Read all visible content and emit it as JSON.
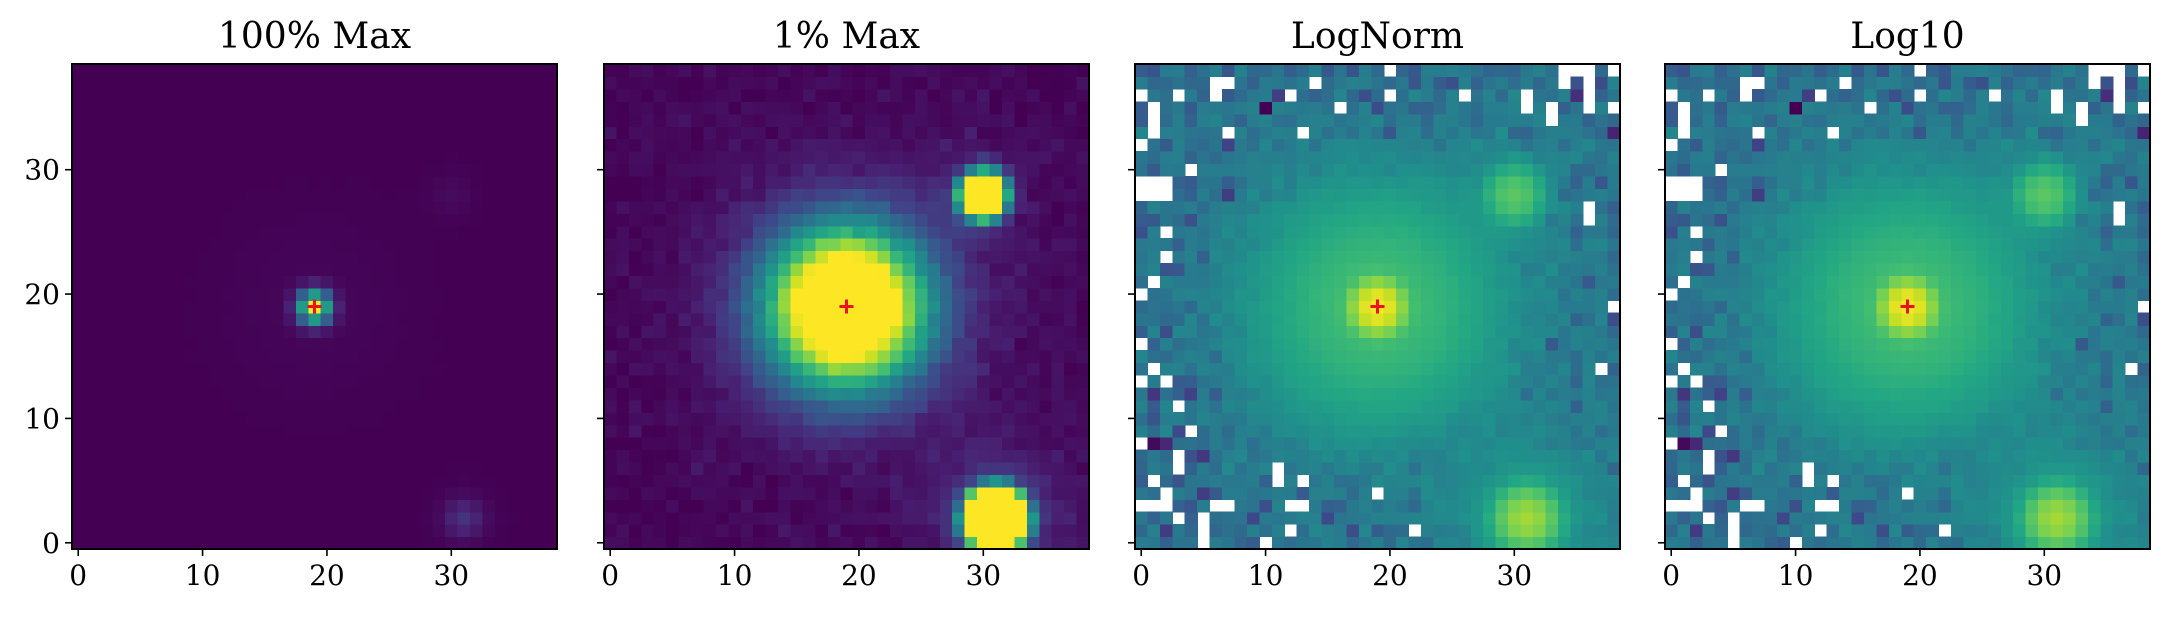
{
  "chart_data": [
    {
      "type": "heatmap",
      "title": "100% Max",
      "norm": "linear",
      "vmax_fraction_of_peak": 1.0,
      "grid_size": 39,
      "x_range": [
        -0.5,
        38.5
      ],
      "y_range": [
        -0.5,
        38.5
      ],
      "xticks": [
        0,
        10,
        20,
        30
      ],
      "yticks": [
        0,
        10,
        20,
        30
      ],
      "y_tick_labels_shown": true,
      "marker": {
        "x": 19,
        "y": 19,
        "symbol": "+",
        "color": "#e8131d"
      },
      "sources": [
        {
          "x": 19,
          "y": 19,
          "peak": 1.0
        },
        {
          "x": 30,
          "y": 28,
          "peak": 0.03
        },
        {
          "x": 31,
          "y": 2,
          "peak": 0.15
        }
      ]
    },
    {
      "type": "heatmap",
      "title": "1% Max",
      "norm": "linear",
      "vmax_fraction_of_peak": 0.01,
      "grid_size": 39,
      "x_range": [
        -0.5,
        38.5
      ],
      "y_range": [
        -0.5,
        38.5
      ],
      "xticks": [
        0,
        10,
        20,
        30
      ],
      "yticks": [
        0,
        10,
        20,
        30
      ],
      "y_tick_labels_shown": false,
      "marker": {
        "x": 19,
        "y": 19,
        "symbol": "+",
        "color": "#e8131d"
      }
    },
    {
      "type": "heatmap",
      "title": "LogNorm",
      "norm": "log",
      "grid_size": 39,
      "x_range": [
        -0.5,
        38.5
      ],
      "y_range": [
        -0.5,
        38.5
      ],
      "xticks": [
        0,
        10,
        20,
        30
      ],
      "yticks": [
        0,
        10,
        20,
        30
      ],
      "y_tick_labels_shown": false,
      "nonpositive_pixels": "blank (white)",
      "marker": {
        "x": 19,
        "y": 19,
        "symbol": "+",
        "color": "#e8131d"
      }
    },
    {
      "type": "heatmap",
      "title": "Log10",
      "norm": "log10",
      "grid_size": 39,
      "x_range": [
        -0.5,
        38.5
      ],
      "y_range": [
        -0.5,
        38.5
      ],
      "xticks": [
        0,
        10,
        20,
        30
      ],
      "yticks": [
        0,
        10,
        20,
        30
      ],
      "y_tick_labels_shown": false,
      "nonpositive_pixels": "blank (white)",
      "marker": {
        "x": 19,
        "y": 19,
        "symbol": "+",
        "color": "#e8131d"
      }
    }
  ],
  "colormap": "viridis",
  "colors": {
    "marker": "#e8131d",
    "viridis_low": "#440154",
    "viridis_high": "#fde725"
  }
}
